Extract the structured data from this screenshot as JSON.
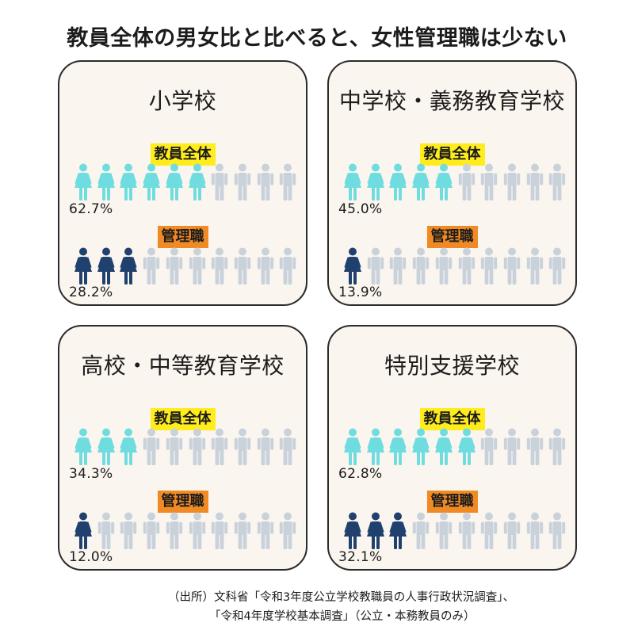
{
  "title": "教員全体の男女比と比べると、女性管理職は少ない",
  "labels": {
    "all": "教員全体",
    "mgr": "管理職"
  },
  "colors": {
    "all_highlight": "#6fdde0",
    "mgr_highlight": "#20406e",
    "rest": "#c9d2db",
    "tag_all": "#ffec1c",
    "tag_mgr": "#f08a24",
    "panel_bg": "#fbf5ef"
  },
  "chart_data": [
    {
      "type": "pictogram",
      "title": "小学校",
      "all_pct": "62.7%",
      "all_value": 62.7,
      "all_icons": 6,
      "mgr_pct": "28.2%",
      "mgr_value": 28.2,
      "mgr_icons": 3,
      "total_icons": 10
    },
    {
      "type": "pictogram",
      "title": "中学校・義務教育学校",
      "all_pct": "45.0%",
      "all_value": 45.0,
      "all_icons": 5,
      "mgr_pct": "13.9%",
      "mgr_value": 13.9,
      "mgr_icons": 1,
      "total_icons": 10
    },
    {
      "type": "pictogram",
      "title": "高校・中等教育学校",
      "all_pct": "34.3%",
      "all_value": 34.3,
      "all_icons": 3,
      "mgr_pct": "12.0%",
      "mgr_value": 12.0,
      "mgr_icons": 1,
      "total_icons": 10
    },
    {
      "type": "pictogram",
      "title": "特別支援学校",
      "all_pct": "62.8%",
      "all_value": 62.8,
      "all_icons": 6,
      "mgr_pct": "32.1%",
      "mgr_value": 32.1,
      "mgr_icons": 3,
      "total_icons": 10
    }
  ],
  "source": {
    "line1": "（出所）文科省「令和3年度公立学校教職員の人事行政状況調査」、",
    "line2": "「令和4年度学校基本調査」（公立・本務教員のみ）"
  }
}
